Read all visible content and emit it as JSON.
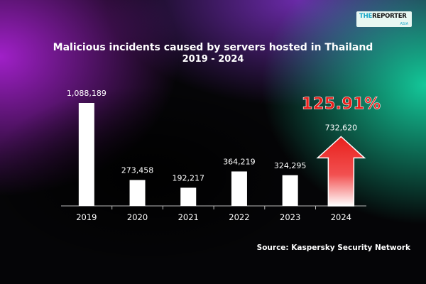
{
  "logo": {
    "text_prefix": "THE",
    "text_main": "REPORTER",
    "text_sub": "ASIA"
  },
  "chart_data": {
    "type": "bar",
    "title": "Malicious incidents caused by servers hosted in Thailand",
    "subtitle": "2019 - 2024",
    "categories": [
      "2019",
      "2020",
      "2021",
      "2022",
      "2023",
      "2024"
    ],
    "values": [
      1088189,
      273458,
      192217,
      364219,
      324295,
      732620
    ],
    "value_labels": [
      "1,088,189",
      "273,458",
      "192,217",
      "364,219",
      "324,295",
      "732,620"
    ],
    "ylim": [
      0,
      1100000
    ],
    "grid": false,
    "highlight": {
      "category": "2024",
      "label": "125.91%",
      "color": "#e8201c"
    },
    "colors": {
      "bar": "#ffffff",
      "arrow_top": "#e8201c",
      "arrow_bottom": "#ffffff"
    }
  },
  "source": "Source: Kaspersky Security Network"
}
